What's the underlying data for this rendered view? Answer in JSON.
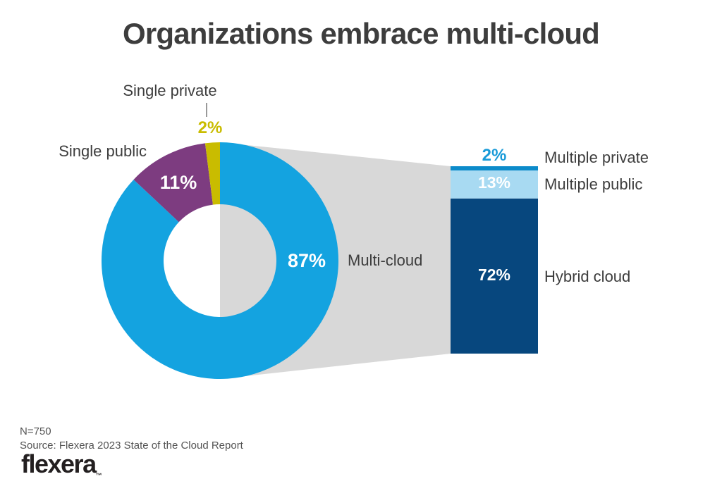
{
  "title": "Organizations embrace multi-cloud",
  "chart_data": {
    "type": "donut",
    "title": "Organizations embrace multi-cloud",
    "n_label": "N=750",
    "source": "Source: Flexera 2023 State of the Cloud Report",
    "donut_segments": [
      {
        "label": "Multi-cloud",
        "value": 87,
        "pct_label": "87%",
        "color": "#14a3e0"
      },
      {
        "label": "Single public",
        "value": 11,
        "pct_label": "11%",
        "color": "#7d3c80"
      },
      {
        "label": "Single private",
        "value": 2,
        "pct_label": "2%",
        "color": "#c9bc00"
      }
    ],
    "breakdown_of": "Multi-cloud",
    "breakdown_total": 87,
    "breakdown_segments": [
      {
        "label": "Multiple private",
        "value": 2,
        "pct_label": "2%",
        "color": "#0c8bca",
        "pct_text_color": "#189ad8"
      },
      {
        "label": "Multiple public",
        "value": 13,
        "pct_label": "13%",
        "color": "#a8daf2"
      },
      {
        "label": "Hybrid cloud",
        "value": 72,
        "pct_label": "72%",
        "color": "#07477e"
      }
    ],
    "connector_color": "#d8d8d8",
    "legend_position": "none"
  },
  "footer": {
    "logo": "flexera",
    "trademark": "™"
  }
}
